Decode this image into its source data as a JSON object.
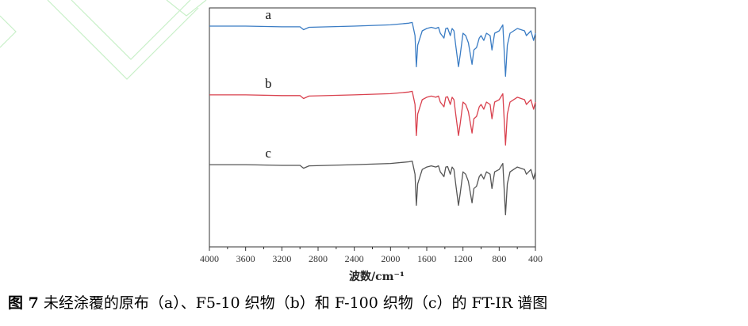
{
  "chart_data": {
    "type": "line",
    "title": "",
    "xlabel": "波数/cm⁻¹",
    "ylabel": "",
    "xlim": [
      4000,
      400
    ],
    "x_reversed": true,
    "xticks": [
      4000,
      3600,
      3200,
      2800,
      2400,
      2000,
      1600,
      1200,
      800,
      400
    ],
    "ylim": [
      0,
      100
    ],
    "y_ticks_shown": false,
    "grid": false,
    "x": [
      4000,
      3600,
      3200,
      3000,
      2960,
      2900,
      2400,
      2000,
      1800,
      1760,
      1730,
      1715,
      1700,
      1650,
      1600,
      1550,
      1500,
      1470,
      1450,
      1410,
      1390,
      1370,
      1340,
      1320,
      1300,
      1280,
      1250,
      1230,
      1200,
      1170,
      1140,
      1100,
      1080,
      1050,
      1020,
      1000,
      970,
      940,
      900,
      880,
      850,
      800,
      760,
      730,
      710,
      680,
      600,
      520,
      500,
      450,
      420,
      400
    ],
    "series": [
      {
        "name": "a",
        "color": "#3a7cc4",
        "values": [
          92.4,
          92.4,
          92.1,
          92.1,
          90.9,
          91.9,
          92.4,
          92.9,
          93.6,
          93.9,
          88.4,
          75.4,
          84.4,
          90.4,
          91.4,
          91.9,
          91.4,
          91.9,
          89.4,
          87.4,
          91.4,
          91.6,
          88.4,
          91.4,
          90.4,
          84.4,
          75.4,
          80.4,
          89.4,
          88.4,
          85.4,
          76.4,
          82.4,
          83.4,
          87.4,
          88.4,
          86.4,
          89.4,
          88.4,
          82.4,
          89.4,
          90.4,
          92.9,
          71.4,
          84.4,
          89.4,
          91.4,
          90.4,
          88.4,
          90.4,
          86.4,
          89.4
        ]
      },
      {
        "name": "b",
        "color": "#d9414e",
        "values": [
          63.6,
          63.6,
          63.3,
          63.3,
          62.1,
          63.1,
          63.6,
          64.1,
          64.8,
          65.1,
          59.6,
          46.6,
          55.6,
          61.6,
          62.6,
          63.1,
          62.6,
          63.1,
          60.6,
          58.6,
          62.6,
          62.8,
          59.6,
          62.6,
          61.6,
          55.6,
          46.6,
          51.6,
          60.6,
          59.6,
          56.6,
          47.6,
          53.6,
          54.6,
          58.6,
          59.6,
          57.6,
          60.6,
          59.6,
          53.6,
          60.6,
          61.6,
          64.1,
          42.6,
          55.6,
          60.6,
          62.6,
          61.6,
          59.6,
          61.6,
          57.6,
          60.6
        ]
      },
      {
        "name": "c",
        "color": "#555555",
        "values": [
          34.4,
          34.4,
          34.1,
          34.1,
          32.9,
          33.9,
          34.4,
          34.9,
          35.6,
          35.9,
          30.4,
          17.4,
          26.4,
          32.4,
          33.4,
          33.9,
          33.4,
          33.9,
          31.4,
          29.4,
          33.4,
          33.6,
          30.4,
          33.4,
          32.4,
          26.4,
          17.4,
          22.4,
          31.4,
          30.4,
          27.4,
          18.4,
          24.4,
          25.4,
          29.4,
          30.4,
          28.4,
          31.4,
          30.4,
          24.4,
          31.4,
          32.4,
          34.9,
          13.4,
          26.4,
          31.4,
          33.4,
          32.4,
          30.4,
          32.4,
          28.4,
          31.4
        ]
      }
    ]
  },
  "caption": {
    "label": "图 7",
    "text": " 未经涂覆的原布（a）、F5-10 织物（b）和 F-100 织物（c）的 FT-IR 谱图"
  }
}
